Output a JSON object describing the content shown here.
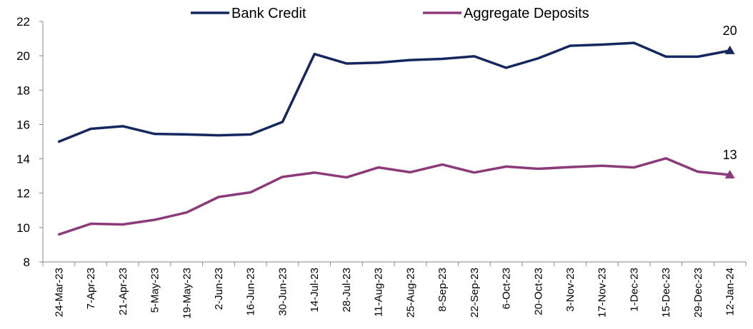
{
  "chart_data": {
    "type": "line",
    "title": "",
    "xlabel": "",
    "ylabel": "",
    "ylim": [
      8,
      22
    ],
    "yticks": [
      8,
      10,
      12,
      14,
      16,
      18,
      20,
      22
    ],
    "grid": false,
    "legend_position": "top",
    "categories": [
      "24-Mar-23",
      "7-Apr-23",
      "21-Apr-23",
      "5-May-23",
      "19-May-23",
      "2-Jun-23",
      "16-Jun-23",
      "30-Jun-23",
      "14-Jul-23",
      "28-Jul-23",
      "11-Aug-23",
      "25-Aug-23",
      "8-Sep-23",
      "22-Sep-23",
      "6-Oct-23",
      "20-Oct-23",
      "3-Nov-23",
      "17-Nov-23",
      "1-Dec-23",
      "15-Dec-23",
      "29-Dec-23",
      "12-Jan-24"
    ],
    "series": [
      {
        "name": "Bank Credit",
        "color": "#14275e",
        "values": [
          15.0,
          15.75,
          15.9,
          15.45,
          15.42,
          15.37,
          15.42,
          16.15,
          20.1,
          19.55,
          19.6,
          19.75,
          19.82,
          19.97,
          19.3,
          19.85,
          20.58,
          20.65,
          20.75,
          19.95,
          19.95,
          20.3
        ],
        "end_label": "20"
      },
      {
        "name": "Aggregate Deposits",
        "color": "#8b3a7a",
        "values": [
          9.6,
          10.22,
          10.18,
          10.45,
          10.88,
          11.78,
          12.05,
          12.95,
          13.2,
          12.92,
          13.5,
          13.22,
          13.67,
          13.2,
          13.55,
          13.42,
          13.52,
          13.6,
          13.5,
          14.03,
          13.25,
          13.07
        ],
        "end_label": "13"
      }
    ]
  }
}
